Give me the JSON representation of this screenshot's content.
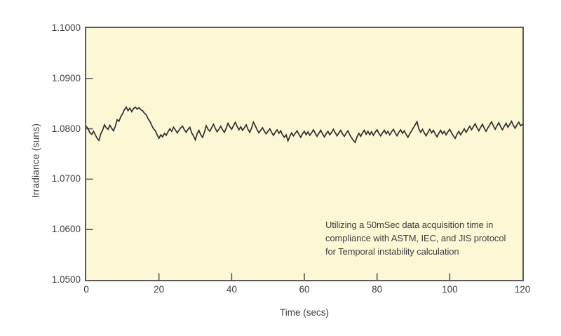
{
  "colors": {
    "page_bg": "#ffffff",
    "plot_bg": "#FCF8D5",
    "plot_border": "#5a5a5a",
    "tick": "#5a5a5a",
    "line": "#2e2e2e",
    "text": "#3d3d3d"
  },
  "chart_data": {
    "type": "line",
    "title": "",
    "xlabel": "Time (secs)",
    "ylabel": "Irradiance (suns)",
    "xlim": [
      0,
      120
    ],
    "ylim": [
      1.05,
      1.1
    ],
    "grid": false,
    "legend_position": "none",
    "xticks": [
      {
        "label": "0",
        "value": 0
      },
      {
        "label": "20",
        "value": 20
      },
      {
        "label": "40",
        "value": 40
      },
      {
        "label": "60",
        "value": 60
      },
      {
        "label": "80",
        "value": 80
      },
      {
        "label": "100",
        "value": 100
      },
      {
        "label": "120",
        "value": 120
      }
    ],
    "yticks": [
      {
        "label": "1.1000",
        "value": 1.1
      },
      {
        "label": "1.0900",
        "value": 1.09
      },
      {
        "label": "1.0800",
        "value": 1.08
      },
      {
        "label": "1.0700",
        "value": 1.07
      },
      {
        "label": "1.0600",
        "value": 1.06
      },
      {
        "label": "1.0500",
        "value": 1.05
      }
    ],
    "annotation": {
      "lines": [
        "Utilizing a 50mSec data acquisition time in",
        "compliance with ASTM, IEC, and JIS protocol",
        "for Temporal instability calculation"
      ]
    },
    "series": [
      {
        "name": "irradiance",
        "color": "#2e2e2e",
        "x_start": 0,
        "x_step": 0.5,
        "values": [
          1.0805,
          1.08,
          1.0792,
          1.0789,
          1.0795,
          1.0788,
          1.0781,
          1.0777,
          1.079,
          1.0797,
          1.0808,
          1.0802,
          1.0799,
          1.0807,
          1.0801,
          1.0796,
          1.0805,
          1.0818,
          1.0815,
          1.0824,
          1.083,
          1.0838,
          1.0843,
          1.0836,
          1.0841,
          1.0834,
          1.084,
          1.0843,
          1.0839,
          1.0842,
          1.0838,
          1.0836,
          1.0831,
          1.0828,
          1.082,
          1.0815,
          1.0807,
          1.08,
          1.0796,
          1.0788,
          1.0781,
          1.0788,
          1.0784,
          1.0791,
          1.0787,
          1.0794,
          1.08,
          1.0795,
          1.0803,
          1.0798,
          1.0792,
          1.0797,
          1.0802,
          1.0805,
          1.0798,
          1.0793,
          1.0799,
          1.0803,
          1.0792,
          1.0786,
          1.0778,
          1.079,
          1.0797,
          1.0788,
          1.0783,
          1.0793,
          1.0806,
          1.0799,
          1.0795,
          1.0802,
          1.0809,
          1.0801,
          1.0794,
          1.0799,
          1.0805,
          1.0798,
          1.0793,
          1.0801,
          1.0811,
          1.0804,
          1.0799,
          1.0806,
          1.0813,
          1.0805,
          1.0798,
          1.0804,
          1.0797,
          1.0802,
          1.0808,
          1.0799,
          1.0793,
          1.0802,
          1.0813,
          1.0806,
          1.0798,
          1.0792,
          1.0797,
          1.0802,
          1.0795,
          1.079,
          1.0795,
          1.08,
          1.0793,
          1.0787,
          1.0793,
          1.0798,
          1.0791,
          1.0796,
          1.0788,
          1.0783,
          1.0788,
          1.0776,
          1.0785,
          1.0792,
          1.0786,
          1.0791,
          1.0796,
          1.0789,
          1.0783,
          1.079,
          1.0795,
          1.0788,
          1.0794,
          1.0787,
          1.0792,
          1.0798,
          1.0791,
          1.0785,
          1.0791,
          1.0797,
          1.079,
          1.0784,
          1.079,
          1.0795,
          1.0788,
          1.0793,
          1.0799,
          1.0792,
          1.0786,
          1.0792,
          1.0797,
          1.079,
          1.0785,
          1.0791,
          1.0796,
          1.0788,
          1.0782,
          1.0777,
          1.0773,
          1.0784,
          1.0791,
          1.0785,
          1.0792,
          1.0797,
          1.0789,
          1.0795,
          1.0788,
          1.0794,
          1.0787,
          1.0793,
          1.0798,
          1.0791,
          1.0786,
          1.0792,
          1.0797,
          1.079,
          1.0795,
          1.0788,
          1.0794,
          1.0799,
          1.0792,
          1.0786,
          1.0793,
          1.0798,
          1.0791,
          1.0796,
          1.0789,
          1.0783,
          1.079,
          1.0796,
          1.0802,
          1.0808,
          1.0814,
          1.08,
          1.0793,
          1.0799,
          1.0792,
          1.0786,
          1.0793,
          1.0799,
          1.0792,
          1.0797,
          1.079,
          1.0784,
          1.0791,
          1.0797,
          1.079,
          1.0795,
          1.0788,
          1.0794,
          1.0799,
          1.0792,
          1.0786,
          1.0781,
          1.0789,
          1.0795,
          1.0788,
          1.0794,
          1.08,
          1.0793,
          1.0799,
          1.0805,
          1.0798,
          1.0804,
          1.081,
          1.0802,
          1.0796,
          1.0803,
          1.0809,
          1.0801,
          1.0795,
          1.0802,
          1.0808,
          1.0814,
          1.0806,
          1.0799,
          1.0806,
          1.0812,
          1.0804,
          1.0798,
          1.0805,
          1.0811,
          1.0803,
          1.0809,
          1.0815,
          1.0807,
          1.0801,
          1.0808,
          1.0813,
          1.0806,
          1.0809
        ]
      }
    ]
  }
}
